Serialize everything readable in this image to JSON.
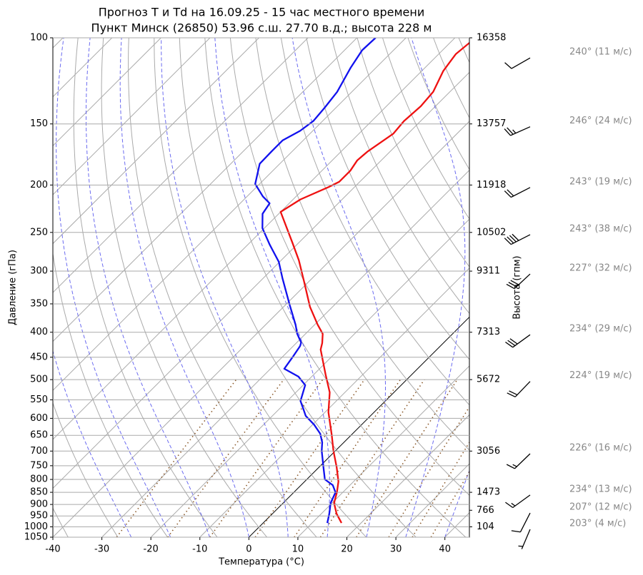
{
  "chart_data": {
    "type": "skewt",
    "title": "Прогноз T и Td на 16.09.25 - 15 час местного времени",
    "subtitle": "Пункт Минск (26850) 53.96 с.ш. 27.70 в.д.; высота 228 м",
    "xlabel": "Температура (°C)",
    "ylabel": "Давление (гПа)",
    "y2label": "Высота (гпм)",
    "xlim": [
      -40,
      45
    ],
    "ylim": [
      1050,
      100
    ],
    "log_scale": true,
    "grid": true,
    "xticks": [
      -40,
      -30,
      -20,
      -10,
      0,
      10,
      20,
      30,
      40
    ],
    "yticks": [
      100,
      150,
      200,
      250,
      300,
      350,
      400,
      450,
      500,
      550,
      600,
      650,
      700,
      750,
      800,
      850,
      900,
      950,
      1000,
      1050
    ],
    "height_ticks": [
      {
        "value": 100,
        "label": "16358"
      },
      {
        "value": 150,
        "label": "13757"
      },
      {
        "value": 200,
        "label": "11918"
      },
      {
        "value": 250,
        "label": "10502"
      },
      {
        "value": 300,
        "label": "9311"
      },
      {
        "value": 400,
        "label": "7313"
      },
      {
        "value": 500,
        "label": "5672"
      },
      {
        "value": 700,
        "label": "3056"
      },
      {
        "value": 850,
        "label": "1473"
      },
      {
        "value": 925,
        "label": "766"
      },
      {
        "value": 1000,
        "label": "104"
      }
    ],
    "series": [
      {
        "color": "#ee1111",
        "pressure": [
          982,
          940,
          894,
          850,
          808,
          755,
          699,
          650,
          583,
          531,
          488,
          434,
          421,
          403,
          386,
          355,
          315,
          285,
          262,
          227,
          214,
          202,
          197,
          187,
          178,
          171,
          157,
          148,
          138,
          129,
          117,
          108,
          102
        ],
        "values": [
          16.0,
          13.1,
          10.4,
          8.8,
          6.9,
          3.6,
          -0.4,
          -3.9,
          -9.3,
          -13.1,
          -17.6,
          -23.7,
          -24.7,
          -26.5,
          -29.4,
          -34.6,
          -41.0,
          -46.4,
          -51.4,
          -60.0,
          -58.5,
          -55.3,
          -54.2,
          -54.2,
          -54.9,
          -54.6,
          -53.0,
          -53.4,
          -53.0,
          -53.4,
          -55.6,
          -56.5,
          -56.0
        ]
      },
      {
        "color": "#1111ee",
        "pressure": [
          982,
          940,
          894,
          850,
          822,
          800,
          755,
          699,
          672,
          645,
          618,
          593,
          577,
          553,
          513,
          493,
          475,
          449,
          427,
          420,
          403,
          386,
          352,
          310,
          287,
          265,
          245,
          229,
          218,
          211,
          199,
          181,
          171,
          162,
          155,
          148,
          139,
          129,
          115,
          106,
          100
        ],
        "values": [
          13.1,
          11.6,
          9.7,
          8.5,
          6.5,
          3.7,
          0.9,
          -2.8,
          -4.4,
          -6.6,
          -9.7,
          -13.2,
          -14.8,
          -17.3,
          -19.6,
          -22.7,
          -27.2,
          -27.9,
          -28.6,
          -29.1,
          -31.7,
          -33.9,
          -39.1,
          -46.1,
          -50.2,
          -55.5,
          -60.4,
          -63.3,
          -64.0,
          -66.8,
          -70.9,
          -74.1,
          -74.2,
          -74.2,
          -72.6,
          -71.9,
          -72.3,
          -73.0,
          -75.2,
          -76.4,
          -76.2
        ]
      }
    ],
    "winds": [
      {
        "pressure": 107,
        "direction": 240,
        "speed": 11,
        "label": "240° (11 м/с)"
      },
      {
        "pressure": 148,
        "direction": 246,
        "speed": 24,
        "label": "246° (24 м/с)"
      },
      {
        "pressure": 197,
        "direction": 243,
        "speed": 19,
        "label": "243° (19 м/с)"
      },
      {
        "pressure": 246,
        "direction": 243,
        "speed": 38,
        "label": "243° (38 м/с)"
      },
      {
        "pressure": 296,
        "direction": 227,
        "speed": 32,
        "label": "227° (32 м/с)"
      },
      {
        "pressure": 394,
        "direction": 234,
        "speed": 29,
        "label": "234° (29 м/с)"
      },
      {
        "pressure": 491,
        "direction": 224,
        "speed": 19,
        "label": "224° (19 м/с)"
      },
      {
        "pressure": 690,
        "direction": 226,
        "speed": 16,
        "label": "226° (16 м/с)"
      },
      {
        "pressure": 838,
        "direction": 234,
        "speed": 13,
        "label": "234° (13 м/с)"
      },
      {
        "pressure": 912,
        "direction": 207,
        "speed": 12,
        "label": "207° (12 м/с)"
      },
      {
        "pressure": 985,
        "direction": 203,
        "speed": 4,
        "label": "203° (4 м/с)"
      }
    ]
  }
}
